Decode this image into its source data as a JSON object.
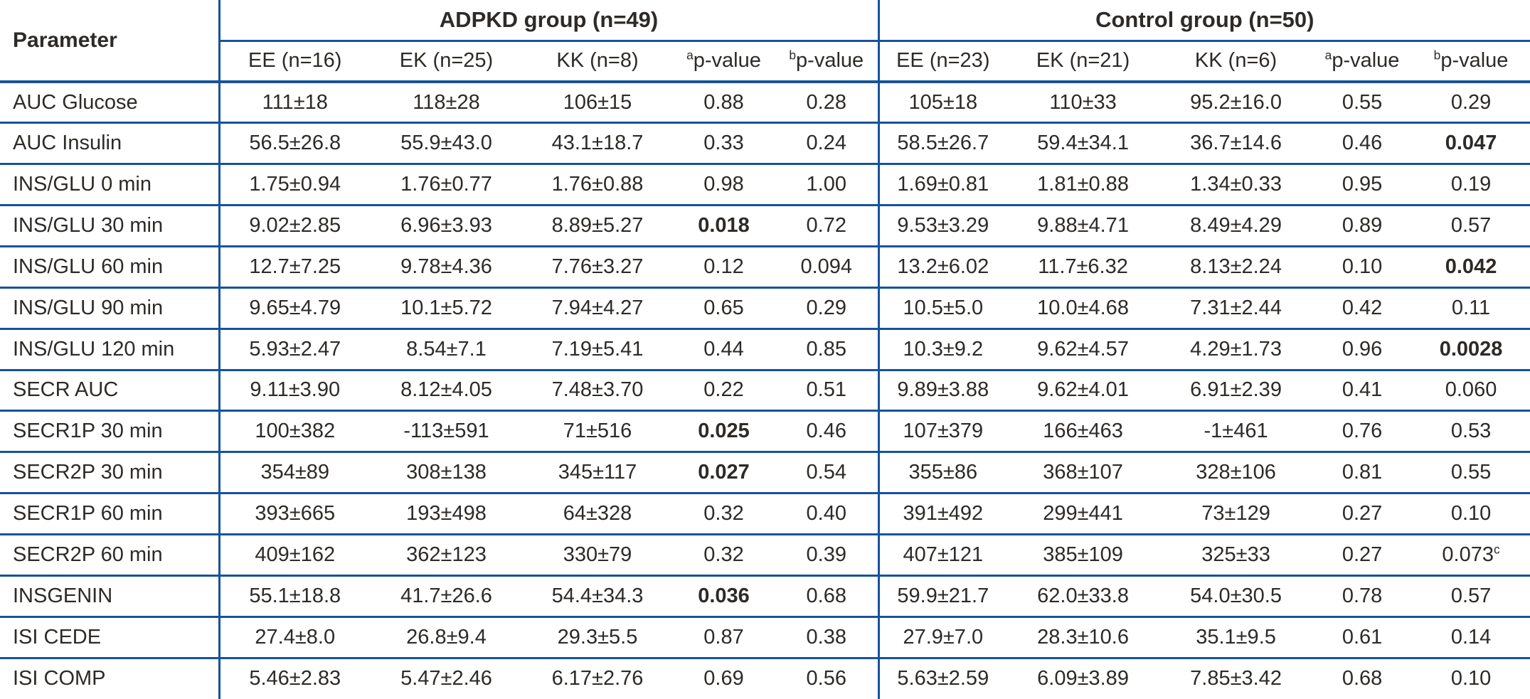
{
  "table": {
    "param_header": "Parameter",
    "groups": [
      {
        "label": "ADPKD group (n=49)",
        "subheaders": [
          "EE (n=16)",
          "EK (n=25)",
          "KK (n=8)",
          "^a^p-value",
          "^b^p-value"
        ]
      },
      {
        "label": "Control group (n=50)",
        "subheaders": [
          "EE (n=23)",
          "EK (n=21)",
          "KK (n=6)",
          "^a^p-value",
          "^b^p-value"
        ]
      }
    ],
    "rows": [
      {
        "param": "AUC Glucose",
        "adpkd": [
          "111±18",
          "118±28",
          "106±15",
          "0.88",
          "0.28"
        ],
        "control": [
          "105±18",
          "110±33",
          "95.2±16.0",
          "0.55",
          "0.29"
        ],
        "adpkd_bold": [],
        "control_bold": []
      },
      {
        "param": "AUC Insulin",
        "adpkd": [
          "56.5±26.8",
          "55.9±43.0",
          "43.1±18.7",
          "0.33",
          "0.24"
        ],
        "control": [
          "58.5±26.7",
          "59.4±34.1",
          "36.7±14.6",
          "0.46",
          "0.047"
        ],
        "adpkd_bold": [],
        "control_bold": [
          4
        ]
      },
      {
        "param": "INS/GLU 0 min",
        "adpkd": [
          "1.75±0.94",
          "1.76±0.77",
          "1.76±0.88",
          "0.98",
          "1.00"
        ],
        "control": [
          "1.69±0.81",
          "1.81±0.88",
          "1.34±0.33",
          "0.95",
          "0.19"
        ],
        "adpkd_bold": [],
        "control_bold": []
      },
      {
        "param": "INS/GLU 30 min",
        "adpkd": [
          "9.02±2.85",
          "6.96±3.93",
          "8.89±5.27",
          "0.018",
          "0.72"
        ],
        "control": [
          "9.53±3.29",
          "9.88±4.71",
          "8.49±4.29",
          "0.89",
          "0.57"
        ],
        "adpkd_bold": [
          3
        ],
        "control_bold": []
      },
      {
        "param": "INS/GLU 60 min",
        "adpkd": [
          "12.7±7.25",
          "9.78±4.36",
          "7.76±3.27",
          "0.12",
          "0.094"
        ],
        "control": [
          "13.2±6.02",
          "11.7±6.32",
          "8.13±2.24",
          "0.10",
          "0.042"
        ],
        "adpkd_bold": [],
        "control_bold": [
          4
        ]
      },
      {
        "param": "INS/GLU 90 min",
        "adpkd": [
          "9.65±4.79",
          "10.1±5.72",
          "7.94±4.27",
          "0.65",
          "0.29"
        ],
        "control": [
          "10.5±5.0",
          "10.0±4.68",
          "7.31±2.44",
          "0.42",
          "0.11"
        ],
        "adpkd_bold": [],
        "control_bold": []
      },
      {
        "param": "INS/GLU 120 min",
        "adpkd": [
          "5.93±2.47",
          "8.54±7.1",
          "7.19±5.41",
          "0.44",
          "0.85"
        ],
        "control": [
          "10.3±9.2",
          "9.62±4.57",
          "4.29±1.73",
          "0.96",
          "0.0028"
        ],
        "adpkd_bold": [],
        "control_bold": [
          4
        ]
      },
      {
        "param": "SECR AUC",
        "adpkd": [
          "9.11±3.90",
          "8.12±4.05",
          "7.48±3.70",
          "0.22",
          "0.51"
        ],
        "control": [
          "9.89±3.88",
          "9.62±4.01",
          "6.91±2.39",
          "0.41",
          "0.060"
        ],
        "adpkd_bold": [],
        "control_bold": []
      },
      {
        "param": "SECR1P 30 min",
        "adpkd": [
          "100±382",
          "-113±591",
          "71±516",
          "0.025",
          "0.46"
        ],
        "control": [
          "107±379",
          "166±463",
          "-1±461",
          "0.76",
          "0.53"
        ],
        "adpkd_bold": [
          3
        ],
        "control_bold": []
      },
      {
        "param": "SECR2P 30 min",
        "adpkd": [
          "354±89",
          "308±138",
          "345±117",
          "0.027",
          "0.54"
        ],
        "control": [
          "355±86",
          "368±107",
          "328±106",
          "0.81",
          "0.55"
        ],
        "adpkd_bold": [
          3
        ],
        "control_bold": []
      },
      {
        "param": "SECR1P 60 min",
        "adpkd": [
          "393±665",
          "193±498",
          "64±328",
          "0.32",
          "0.40"
        ],
        "control": [
          "391±492",
          "299±441",
          "73±129",
          "0.27",
          "0.10"
        ],
        "adpkd_bold": [],
        "control_bold": []
      },
      {
        "param": "SECR2P 60 min",
        "adpkd": [
          "409±162",
          "362±123",
          "330±79",
          "0.32",
          "0.39"
        ],
        "control": [
          "407±121",
          "385±109",
          "325±33",
          "0.27",
          "0.073^c"
        ],
        "adpkd_bold": [],
        "control_bold": []
      },
      {
        "param": "INSGENIN",
        "adpkd": [
          "55.1±18.8",
          "41.7±26.6",
          "54.4±34.3",
          "0.036",
          "0.68"
        ],
        "control": [
          "59.9±21.7",
          "62.0±33.8",
          "54.0±30.5",
          "0.78",
          "0.57"
        ],
        "adpkd_bold": [
          3
        ],
        "control_bold": []
      },
      {
        "param": "ISI CEDE",
        "adpkd": [
          "27.4±8.0",
          "26.8±9.4",
          "29.3±5.5",
          "0.87",
          "0.38"
        ],
        "control": [
          "27.9±7.0",
          "28.3±10.6",
          "35.1±9.5",
          "0.61",
          "0.14"
        ],
        "adpkd_bold": [],
        "control_bold": []
      },
      {
        "param": "ISI COMP",
        "adpkd": [
          "5.46±2.83",
          "5.47±2.46",
          "6.17±2.76",
          "0.69",
          "0.56"
        ],
        "control": [
          "5.63±2.59",
          "6.09±3.89",
          "7.85±3.42",
          "0.68",
          "0.10"
        ],
        "adpkd_bold": [],
        "control_bold": []
      }
    ]
  }
}
